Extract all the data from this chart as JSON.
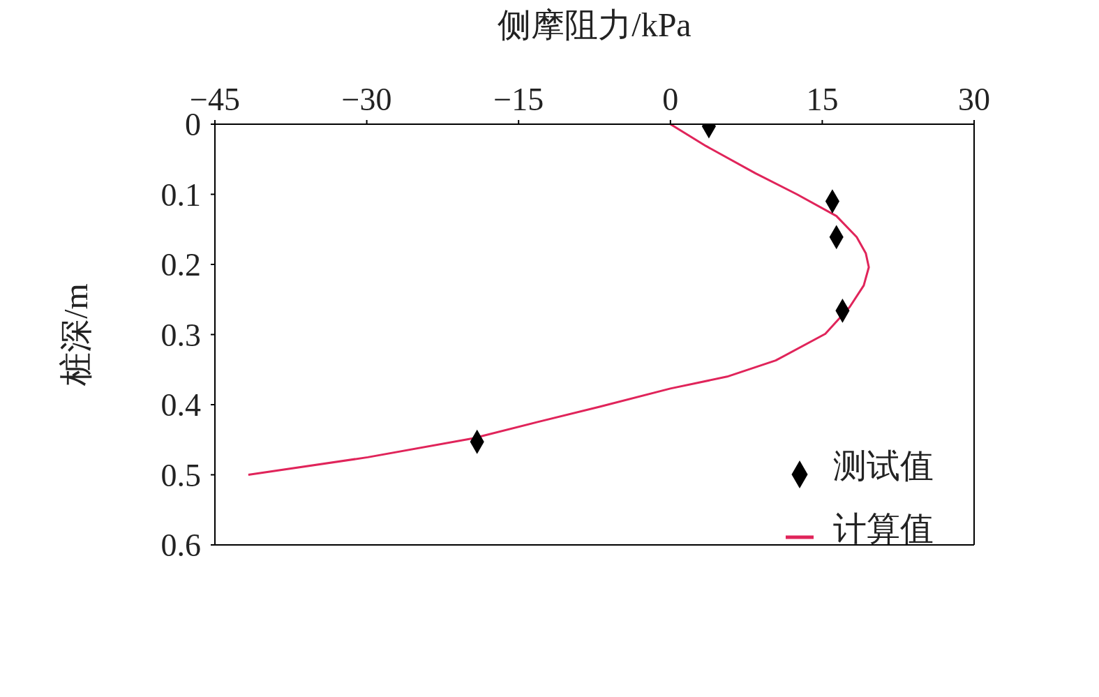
{
  "chart_data": {
    "type": "scatter",
    "xlabel": "侧摩阻力/kPa",
    "ylabel": "桩深/m",
    "xlim": [
      -45,
      30
    ],
    "xticks": [
      -45,
      -30,
      -15,
      0,
      15,
      30
    ],
    "ylim": [
      0.6,
      0
    ],
    "yticks": [
      0,
      0.1,
      0.2,
      0.3,
      0.4,
      0.5,
      0.6
    ],
    "legend": "bottom right",
    "series": [
      {
        "name": "测试值",
        "marker": "diamond",
        "color": "#000000",
        "x": [
          3.8,
          16.0,
          16.4,
          17.0,
          -19.1
        ],
        "values": [
          0.003,
          0.11,
          0.161,
          0.266,
          0.453
        ]
      },
      {
        "name": "计算值",
        "type": "line",
        "marker": "none",
        "line_style": "solid",
        "color": "#e0245a",
        "x": [
          0,
          3.5,
          8.4,
          12.5,
          16.4,
          18.4,
          19.3,
          19.6,
          19.1,
          17.7,
          15.3,
          10.4,
          5.6,
          0,
          -7,
          -13.2,
          -19.5,
          -29.9,
          -41.7
        ],
        "values": [
          0,
          0.031,
          0.07,
          0.1,
          0.131,
          0.161,
          0.184,
          0.204,
          0.23,
          0.261,
          0.299,
          0.337,
          0.36,
          0.377,
          0.403,
          0.425,
          0.448,
          0.475,
          0.5
        ]
      }
    ]
  }
}
